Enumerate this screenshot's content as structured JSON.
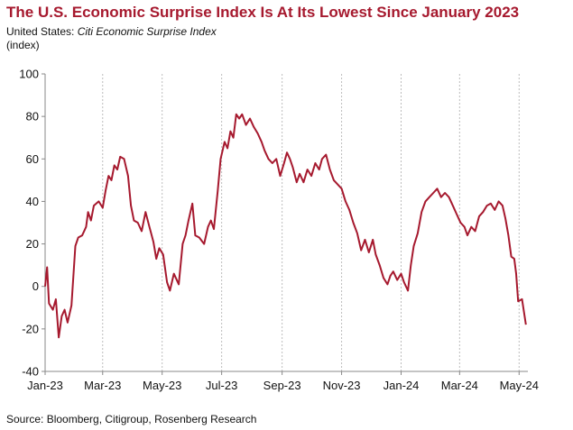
{
  "header": {
    "title": "The U.S. Economic Surprise Index Is At Its Lowest Since January 2023",
    "subtitle_prefix": "United States: ",
    "subtitle_series": "Citi Economic Surprise Index",
    "unit": "(index)"
  },
  "footer": {
    "source": "Source: Bloomberg, Citigroup, Rosenberg Research"
  },
  "colors": {
    "line": "#a6192e",
    "title": "#a6192e",
    "grid": "#bdbdbd"
  },
  "chart_data": {
    "type": "line",
    "title": "The U.S. Economic Surprise Index Is At Its Lowest Since January 2023",
    "xlabel": "",
    "ylabel": "(index)",
    "ylim": [
      -40,
      100
    ],
    "yticks": [
      100,
      80,
      60,
      40,
      20,
      0,
      -20,
      -40
    ],
    "xlim": [
      "2023-01-01",
      "2024-05-10"
    ],
    "xticks": [
      {
        "date": "2023-01-01",
        "label": "Jan-23"
      },
      {
        "date": "2023-03-01",
        "label": "Mar-23"
      },
      {
        "date": "2023-05-01",
        "label": "May-23"
      },
      {
        "date": "2023-07-01",
        "label": "Jul-23"
      },
      {
        "date": "2023-09-01",
        "label": "Sep-23"
      },
      {
        "date": "2023-11-01",
        "label": "Nov-23"
      },
      {
        "date": "2024-01-01",
        "label": "Jan-24"
      },
      {
        "date": "2024-03-01",
        "label": "Mar-24"
      },
      {
        "date": "2024-05-01",
        "label": "May-24"
      }
    ],
    "grid": {
      "vertical": true,
      "horizontal": false
    },
    "series": [
      {
        "points": [
          [
            "2023-01-01",
            0
          ],
          [
            "2023-01-03",
            9
          ],
          [
            "2023-01-05",
            -8
          ],
          [
            "2023-01-09",
            -11
          ],
          [
            "2023-01-12",
            -6
          ],
          [
            "2023-01-15",
            -24
          ],
          [
            "2023-01-18",
            -14
          ],
          [
            "2023-01-21",
            -11
          ],
          [
            "2023-01-24",
            -17
          ],
          [
            "2023-01-28",
            -9
          ],
          [
            "2023-02-01",
            19
          ],
          [
            "2023-02-04",
            23
          ],
          [
            "2023-02-08",
            24
          ],
          [
            "2023-02-12",
            28
          ],
          [
            "2023-02-14",
            35
          ],
          [
            "2023-02-17",
            31
          ],
          [
            "2023-02-20",
            38
          ],
          [
            "2023-02-25",
            40
          ],
          [
            "2023-03-01",
            37
          ],
          [
            "2023-03-04",
            45
          ],
          [
            "2023-03-07",
            52
          ],
          [
            "2023-03-10",
            50
          ],
          [
            "2023-03-13",
            57
          ],
          [
            "2023-03-16",
            55
          ],
          [
            "2023-03-19",
            61
          ],
          [
            "2023-03-23",
            60
          ],
          [
            "2023-03-27",
            52
          ],
          [
            "2023-03-30",
            38
          ],
          [
            "2023-04-02",
            31
          ],
          [
            "2023-04-06",
            30
          ],
          [
            "2023-04-10",
            26
          ],
          [
            "2023-04-14",
            35
          ],
          [
            "2023-04-18",
            28
          ],
          [
            "2023-04-22",
            21
          ],
          [
            "2023-04-25",
            13
          ],
          [
            "2023-04-28",
            18
          ],
          [
            "2023-05-02",
            15
          ],
          [
            "2023-05-06",
            2
          ],
          [
            "2023-05-09",
            -2
          ],
          [
            "2023-05-13",
            6
          ],
          [
            "2023-05-18",
            1
          ],
          [
            "2023-05-22",
            20
          ],
          [
            "2023-05-25",
            24
          ],
          [
            "2023-05-28",
            31
          ],
          [
            "2023-06-01",
            39
          ],
          [
            "2023-06-04",
            24
          ],
          [
            "2023-06-08",
            23
          ],
          [
            "2023-06-13",
            20
          ],
          [
            "2023-06-17",
            28
          ],
          [
            "2023-06-20",
            31
          ],
          [
            "2023-06-23",
            27
          ],
          [
            "2023-06-27",
            45
          ],
          [
            "2023-06-30",
            60
          ],
          [
            "2023-07-04",
            68
          ],
          [
            "2023-07-07",
            65
          ],
          [
            "2023-07-10",
            73
          ],
          [
            "2023-07-13",
            70
          ],
          [
            "2023-07-16",
            81
          ],
          [
            "2023-07-19",
            79
          ],
          [
            "2023-07-22",
            81
          ],
          [
            "2023-07-26",
            76
          ],
          [
            "2023-07-30",
            79
          ],
          [
            "2023-08-03",
            75
          ],
          [
            "2023-08-07",
            72
          ],
          [
            "2023-08-11",
            68
          ],
          [
            "2023-08-14",
            64
          ],
          [
            "2023-08-18",
            60
          ],
          [
            "2023-08-22",
            58
          ],
          [
            "2023-08-26",
            60
          ],
          [
            "2023-08-30",
            52
          ],
          [
            "2023-09-03",
            58
          ],
          [
            "2023-09-06",
            63
          ],
          [
            "2023-09-09",
            60
          ],
          [
            "2023-09-12",
            56
          ],
          [
            "2023-09-16",
            49
          ],
          [
            "2023-09-19",
            53
          ],
          [
            "2023-09-23",
            49
          ],
          [
            "2023-09-27",
            55
          ],
          [
            "2023-10-01",
            52
          ],
          [
            "2023-10-05",
            58
          ],
          [
            "2023-10-09",
            55
          ],
          [
            "2023-10-12",
            60
          ],
          [
            "2023-10-16",
            62
          ],
          [
            "2023-10-20",
            55
          ],
          [
            "2023-10-24",
            50
          ],
          [
            "2023-10-28",
            48
          ],
          [
            "2023-11-01",
            46
          ],
          [
            "2023-11-05",
            40
          ],
          [
            "2023-11-09",
            36
          ],
          [
            "2023-11-13",
            30
          ],
          [
            "2023-11-17",
            25
          ],
          [
            "2023-11-21",
            17
          ],
          [
            "2023-11-25",
            22
          ],
          [
            "2023-11-29",
            16
          ],
          [
            "2023-12-03",
            22
          ],
          [
            "2023-12-06",
            15
          ],
          [
            "2023-12-10",
            10
          ],
          [
            "2023-12-14",
            4
          ],
          [
            "2023-12-18",
            1
          ],
          [
            "2023-12-21",
            5
          ],
          [
            "2023-12-24",
            7
          ],
          [
            "2023-12-28",
            3
          ],
          [
            "2024-01-01",
            6
          ],
          [
            "2024-01-04",
            2
          ],
          [
            "2024-01-08",
            -2
          ],
          [
            "2024-01-11",
            10
          ],
          [
            "2024-01-14",
            19
          ],
          [
            "2024-01-18",
            25
          ],
          [
            "2024-01-22",
            35
          ],
          [
            "2024-01-26",
            40
          ],
          [
            "2024-01-30",
            42
          ],
          [
            "2024-02-03",
            44
          ],
          [
            "2024-02-07",
            46
          ],
          [
            "2024-02-11",
            42
          ],
          [
            "2024-02-15",
            44
          ],
          [
            "2024-02-19",
            42
          ],
          [
            "2024-02-23",
            38
          ],
          [
            "2024-02-27",
            34
          ],
          [
            "2024-03-02",
            30
          ],
          [
            "2024-03-06",
            28
          ],
          [
            "2024-03-09",
            24
          ],
          [
            "2024-03-13",
            28
          ],
          [
            "2024-03-17",
            26
          ],
          [
            "2024-03-21",
            33
          ],
          [
            "2024-03-25",
            35
          ],
          [
            "2024-03-29",
            38
          ],
          [
            "2024-04-02",
            39
          ],
          [
            "2024-04-06",
            36
          ],
          [
            "2024-04-10",
            40
          ],
          [
            "2024-04-14",
            38
          ],
          [
            "2024-04-17",
            32
          ],
          [
            "2024-04-20",
            24
          ],
          [
            "2024-04-23",
            14
          ],
          [
            "2024-04-26",
            13
          ],
          [
            "2024-04-28",
            6
          ],
          [
            "2024-04-30",
            -7
          ],
          [
            "2024-05-04",
            -6
          ],
          [
            "2024-05-08",
            -18
          ]
        ]
      }
    ]
  }
}
